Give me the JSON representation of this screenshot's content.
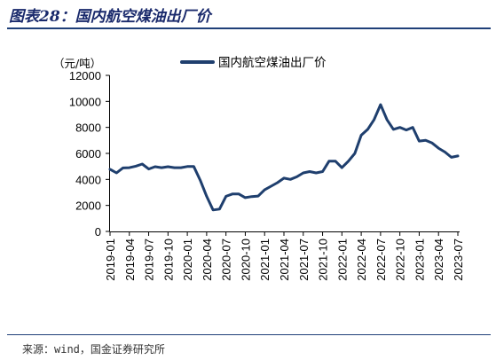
{
  "header": {
    "title": "图表28：国内航空煤油出厂价"
  },
  "footer": {
    "source": "来源：wind，国金证券研究所"
  },
  "chart_data": {
    "type": "line",
    "title": "",
    "xlabel": "",
    "ylabel": "（元/吨）",
    "ylim": [
      0,
      12000
    ],
    "yticks": [
      0,
      2000,
      4000,
      6000,
      8000,
      10000,
      12000
    ],
    "grid": false,
    "legend_position": "top",
    "x_tick_labels": [
      "2019-01",
      "2019-04",
      "2019-07",
      "2019-10",
      "2020-01",
      "2020-04",
      "2020-07",
      "2020-10",
      "2021-01",
      "2021-04",
      "2021-07",
      "2021-10",
      "2022-01",
      "2022-04",
      "2022-07",
      "2022-10",
      "2023-01",
      "2023-04",
      "2023-07"
    ],
    "x": [
      "2019-01",
      "2019-02",
      "2019-03",
      "2019-04",
      "2019-05",
      "2019-06",
      "2019-07",
      "2019-08",
      "2019-09",
      "2019-10",
      "2019-11",
      "2019-12",
      "2020-01",
      "2020-02",
      "2020-03",
      "2020-04",
      "2020-05",
      "2020-06",
      "2020-07",
      "2020-08",
      "2020-09",
      "2020-10",
      "2020-11",
      "2020-12",
      "2021-01",
      "2021-02",
      "2021-03",
      "2021-04",
      "2021-05",
      "2021-06",
      "2021-07",
      "2021-08",
      "2021-09",
      "2021-10",
      "2021-11",
      "2021-12",
      "2022-01",
      "2022-02",
      "2022-03",
      "2022-04",
      "2022-05",
      "2022-06",
      "2022-07",
      "2022-08",
      "2022-09",
      "2022-10",
      "2022-11",
      "2022-12",
      "2023-01",
      "2023-02",
      "2023-03",
      "2023-04",
      "2023-05",
      "2023-06",
      "2023-07"
    ],
    "series": [
      {
        "name": "国内航空煤油出厂价",
        "color": "#1f3f6e",
        "values": [
          4780,
          4500,
          4880,
          4900,
          5020,
          5180,
          4800,
          4980,
          4900,
          4980,
          4900,
          4900,
          4990,
          4990,
          3950,
          2700,
          1650,
          1720,
          2700,
          2880,
          2880,
          2600,
          2680,
          2720,
          3200,
          3480,
          3750,
          4100,
          4000,
          4200,
          4500,
          4600,
          4500,
          4600,
          5400,
          5400,
          4900,
          5400,
          6000,
          7400,
          7850,
          8600,
          9750,
          8600,
          7850,
          8000,
          7800,
          8000,
          6950,
          7000,
          6800,
          6400,
          6100,
          5700,
          5800
        ]
      }
    ]
  }
}
